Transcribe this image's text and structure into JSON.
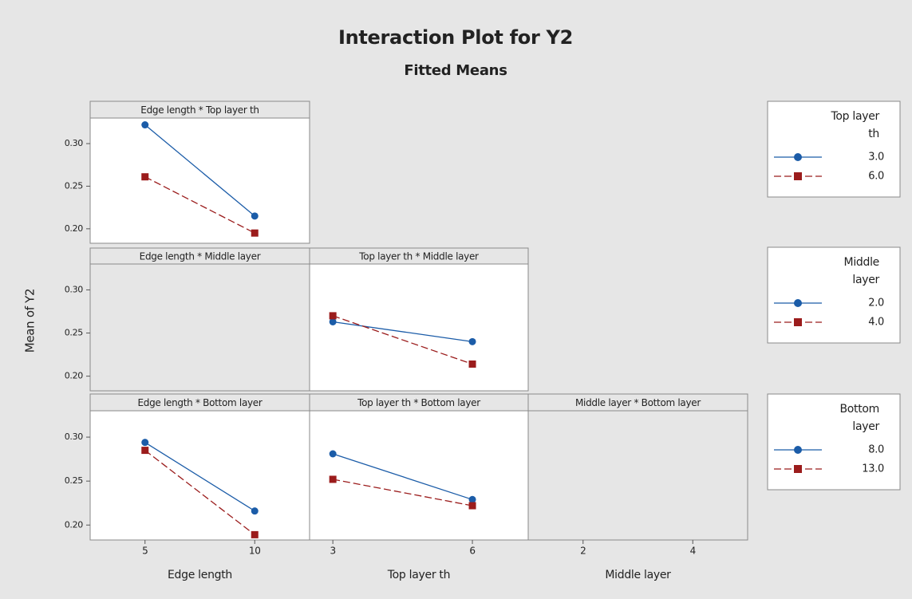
{
  "chart_data": {
    "type": "line",
    "title": "Interaction Plot for Y2",
    "subtitle": "Fitted Means",
    "ylabel": "Mean of Y2",
    "ylim": [
      0.183,
      0.33
    ],
    "yticks": [
      {
        "value": 0.2,
        "label": "0.20"
      },
      0.25,
      {
        "value": 0.3,
        "label": "0.30"
      }
    ],
    "xaxes": [
      {
        "label": "Edge length",
        "xlim": [
          2.5,
          12.5
        ],
        "xticks": [
          5,
          10
        ]
      },
      {
        "label": "Top layer th",
        "xlim": [
          2.5,
          7.2
        ],
        "xticks": [
          3,
          6
        ]
      },
      {
        "label": "Middle layer",
        "xlim": [
          1,
          5
        ],
        "xticks": [
          2,
          4
        ]
      }
    ],
    "legends": [
      {
        "title": "Top layer th",
        "series": [
          {
            "name": "3.0",
            "color": "#1b5ca8",
            "marker": "circle",
            "dashed": false
          },
          {
            "name": "6.0",
            "color": "#9b1c1c",
            "marker": "square",
            "dashed": true
          }
        ]
      },
      {
        "title": "Middle layer",
        "series": [
          {
            "name": "2.0",
            "color": "#1b5ca8",
            "marker": "circle",
            "dashed": false
          },
          {
            "name": "4.0",
            "color": "#9b1c1c",
            "marker": "square",
            "dashed": true
          }
        ]
      },
      {
        "title": "Bottom layer",
        "series": [
          {
            "name": "8.0",
            "color": "#1b5ca8",
            "marker": "circle",
            "dashed": false
          },
          {
            "name": "13.0",
            "color": "#9b1c1c",
            "marker": "square",
            "dashed": true
          }
        ]
      }
    ],
    "panels": [
      {
        "title": "Edge length * Top layer th",
        "x": [
          5,
          10
        ],
        "series": [
          {
            "values": [
              0.322,
              0.215
            ]
          },
          {
            "values": [
              0.261,
              0.195
            ]
          }
        ]
      },
      {
        "title": "Edge length * Middle layer",
        "x": [],
        "series": []
      },
      {
        "title": "Top layer th * Middle layer",
        "x": [
          3,
          6
        ],
        "series": [
          {
            "values": [
              0.263,
              0.24
            ]
          },
          {
            "values": [
              0.27,
              0.214
            ]
          }
        ]
      },
      {
        "title": "Edge length * Bottom layer",
        "x": [
          5,
          10
        ],
        "series": [
          {
            "values": [
              0.294,
              0.216
            ]
          },
          {
            "values": [
              0.285,
              0.189
            ]
          }
        ]
      },
      {
        "title": "Top layer th * Bottom layer",
        "x": [
          3,
          6
        ],
        "series": [
          {
            "values": [
              0.281,
              0.229
            ]
          },
          {
            "values": [
              0.252,
              0.222
            ]
          }
        ]
      },
      {
        "title": "Middle layer * Bottom layer",
        "x": [],
        "series": []
      }
    ]
  }
}
